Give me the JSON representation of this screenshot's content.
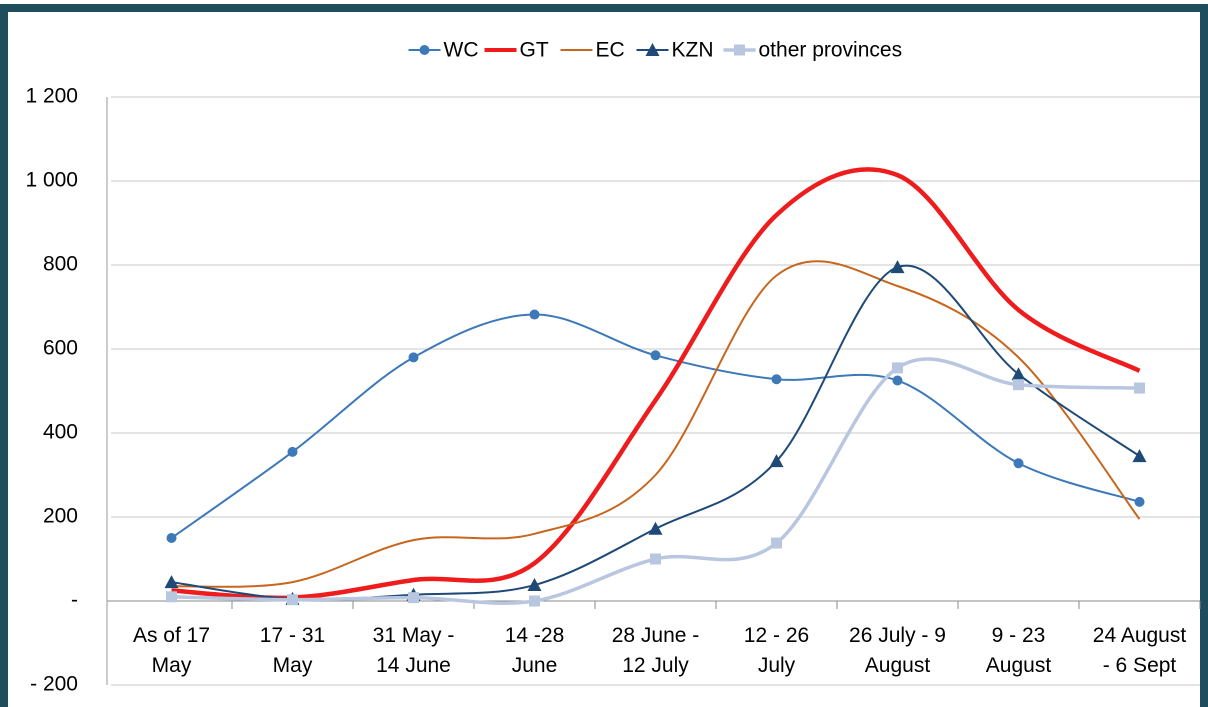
{
  "chart_data": {
    "type": "line",
    "categories": [
      "As of 17\nMay",
      "17 - 31\nMay",
      "31 May -\n14 June",
      "14 -28\nJune",
      "28 June -\n12 July",
      "12 - 26\nJuly",
      "26 July - 9\nAugust",
      "9 - 23\nAugust",
      "24 August\n- 6 Sept"
    ],
    "series": [
      {
        "name": "WC",
        "color": "#3d79b8",
        "marker": "circle",
        "width": 2,
        "values": [
          150,
          355,
          580,
          682,
          585,
          528,
          525,
          328,
          236
        ]
      },
      {
        "name": "GT",
        "color": "#ee1c1c",
        "marker": "none",
        "width": 4.5,
        "values": [
          25,
          8,
          50,
          90,
          478,
          919,
          1014,
          693,
          548
        ]
      },
      {
        "name": "EC",
        "color": "#c8661e",
        "marker": "none",
        "width": 2,
        "values": [
          35,
          45,
          145,
          160,
          300,
          775,
          750,
          580,
          195
        ]
      },
      {
        "name": "KZN",
        "color": "#1f4a78",
        "marker": "triangle",
        "width": 2,
        "values": [
          45,
          5,
          15,
          38,
          172,
          333,
          795,
          540,
          345
        ]
      },
      {
        "name": "other provinces",
        "color": "#b8c6df",
        "marker": "square",
        "width": 3.5,
        "values": [
          10,
          3,
          8,
          0,
          100,
          138,
          555,
          515,
          507
        ]
      }
    ],
    "ylim": [
      -200,
      1200
    ],
    "yticks": [
      {
        "value": -200,
        "label": "- 200"
      },
      {
        "value": 0,
        "label": "-"
      },
      200,
      400,
      600,
      800,
      {
        "value": 1000,
        "label": "1 000"
      },
      {
        "value": 1200,
        "label": "1 200"
      }
    ],
    "grid": true,
    "legend": "top",
    "smooth": true
  }
}
